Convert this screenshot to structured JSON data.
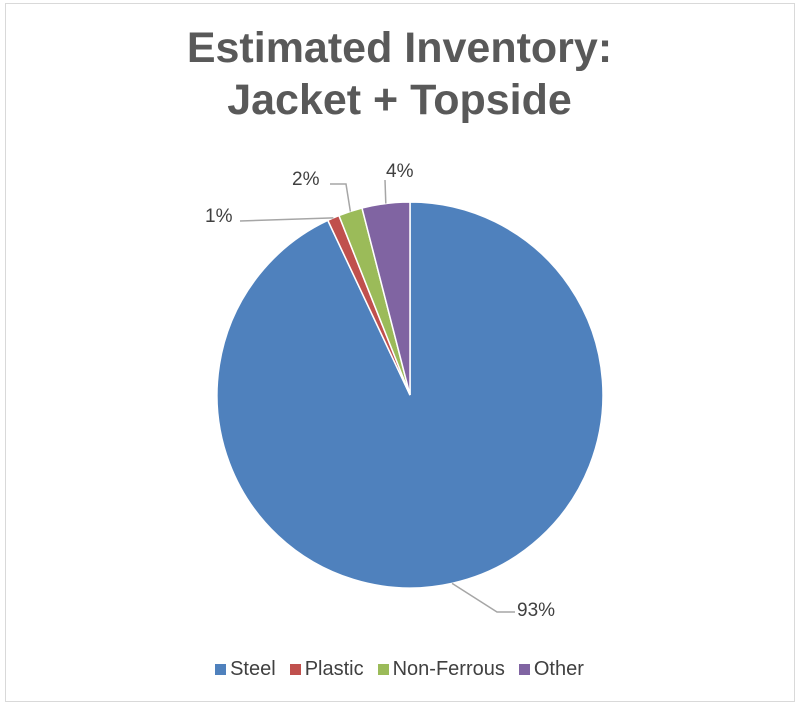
{
  "chart_data": {
    "type": "pie",
    "title_lines": [
      "Estimated Inventory:",
      "Jacket + Topside"
    ],
    "categories": [
      "Steel",
      "Plastic",
      "Non-Ferrous",
      "Other"
    ],
    "values": [
      93,
      1,
      2,
      4
    ],
    "data_labels": [
      "93%",
      "1%",
      "2%",
      "4%"
    ],
    "colors": [
      "#4f81bd",
      "#c0504d",
      "#9bbb59",
      "#8064a2"
    ],
    "legend_position": "bottom"
  }
}
